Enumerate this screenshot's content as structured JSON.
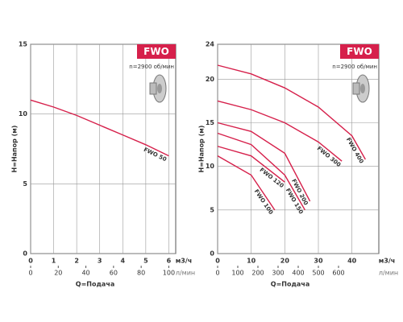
{
  "chart_data": [
    {
      "type": "line",
      "title": "FWO",
      "subtitle": "n=2900 об/мин",
      "y_label": "H=Напор (м)",
      "x_label": "м3/ч",
      "x2_label": "л/мин",
      "x_caption": "Q=Подача",
      "xlim": [
        0,
        6.3
      ],
      "xticks": [
        0,
        1,
        2,
        3,
        4,
        5,
        6
      ],
      "x2lim": [
        0,
        105
      ],
      "x2ticks": [
        0,
        20,
        40,
        60,
        80,
        100
      ],
      "ylim": [
        0,
        15
      ],
      "yticks": [
        0,
        5,
        10,
        15
      ],
      "grid": true,
      "series": [
        {
          "name": "FWO 50",
          "color": "#d6204b",
          "x": [
            0,
            1,
            2,
            3,
            4,
            5,
            6
          ],
          "values": [
            11,
            10.5,
            9.9,
            9.2,
            8.5,
            7.8,
            7.0
          ]
        }
      ]
    },
    {
      "type": "line",
      "title": "FWO",
      "subtitle": "n=2900 об/мин",
      "y_label": "H=Напор (м)",
      "x_label": "м3/ч",
      "x2_label": "л/мин",
      "x_caption": "Q=Подача",
      "xlim": [
        0,
        48
      ],
      "xticks": [
        0,
        10,
        20,
        30,
        40
      ],
      "x2lim": [
        0,
        800
      ],
      "x2ticks": [
        0,
        100,
        200,
        300,
        400,
        500,
        600
      ],
      "ylim": [
        0,
        24
      ],
      "yticks": [
        0,
        5,
        10,
        15,
        20,
        24
      ],
      "grid": true,
      "series": [
        {
          "name": "FWO 400",
          "color": "#d6204b",
          "x": [
            0,
            10,
            20,
            30,
            40,
            44
          ],
          "values": [
            21.6,
            20.6,
            19,
            16.8,
            13.5,
            10.8
          ]
        },
        {
          "name": "FWO 300",
          "color": "#d6204b",
          "x": [
            0,
            10,
            20,
            30,
            37
          ],
          "values": [
            17.5,
            16.5,
            15,
            12.8,
            10.6
          ]
        },
        {
          "name": "FWO 200",
          "color": "#d6204b",
          "x": [
            0,
            10,
            20,
            27.5
          ],
          "values": [
            15,
            14,
            11.5,
            6
          ]
        },
        {
          "name": "FWO 150",
          "color": "#d6204b",
          "x": [
            0,
            10,
            20,
            26
          ],
          "values": [
            13.8,
            12.5,
            9,
            5
          ]
        },
        {
          "name": "FWO 120",
          "color": "#d6204b",
          "x": [
            0,
            10,
            20
          ],
          "values": [
            12.3,
            11.2,
            8.2
          ]
        },
        {
          "name": "FWO 100",
          "color": "#d6204b",
          "x": [
            0,
            10,
            17
          ],
          "values": [
            11.2,
            9,
            5
          ]
        }
      ]
    }
  ]
}
